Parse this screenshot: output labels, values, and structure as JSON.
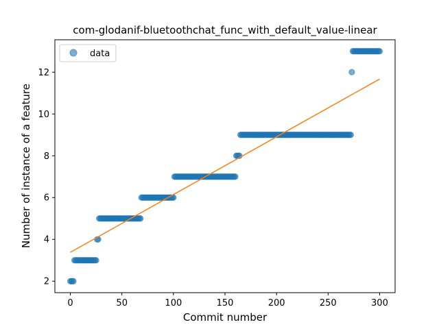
{
  "chart_data": {
    "type": "scatter",
    "title": "com-glodanif-bluetoothchat_func_with_default_value-linear",
    "xlabel": "Commit number",
    "ylabel": "Number of instance of a feature",
    "xlim": [
      -15,
      315
    ],
    "ylim": [
      1.45,
      13.55
    ],
    "xticks": [
      0,
      50,
      100,
      150,
      200,
      250,
      300
    ],
    "yticks": [
      2,
      4,
      6,
      8,
      10,
      12
    ],
    "legend": {
      "position": "top-left",
      "entries": [
        "data"
      ]
    },
    "colors": {
      "data": "#1f77b4",
      "fit": "#ff7f0e"
    },
    "series": [
      {
        "name": "data",
        "kind": "scatter",
        "segments": [
          {
            "x_start": 0,
            "x_end": 3,
            "y": 2
          },
          {
            "x_start": 4,
            "x_end": 25,
            "y": 3
          },
          {
            "x_start": 26,
            "x_end": 27,
            "y": 4
          },
          {
            "x_start": 28,
            "x_end": 68,
            "y": 5
          },
          {
            "x_start": 69,
            "x_end": 100,
            "y": 6
          },
          {
            "x_start": 101,
            "x_end": 160,
            "y": 7
          },
          {
            "x_start": 161,
            "x_end": 164,
            "y": 8
          },
          {
            "x_start": 165,
            "x_end": 272,
            "y": 9
          },
          {
            "x_start": 273,
            "x_end": 273,
            "y": 12
          },
          {
            "x_start": 274,
            "x_end": 300,
            "y": 13
          }
        ]
      },
      {
        "kind": "line",
        "points": [
          [
            0,
            3.38
          ],
          [
            300,
            11.67
          ]
        ]
      }
    ]
  }
}
